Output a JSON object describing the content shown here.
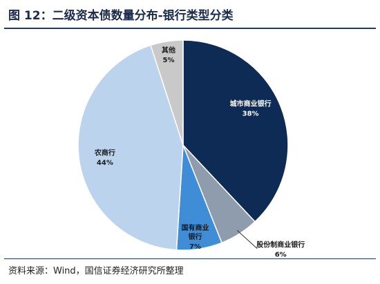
{
  "title": "图 12：二级资本债数量分布-银行类型分类",
  "source": "资料来源：Wind，国信证券经济研究所整理",
  "chart_data": {
    "type": "pie",
    "title": "图 12：二级资本债数量分布-银行类型分类",
    "slices": [
      {
        "name": "城市商业银行",
        "value": 38,
        "label": "38%",
        "color": "#0d2b55",
        "text_color": "#ffffff"
      },
      {
        "name": "股份制商业银行",
        "value": 6,
        "label": "6%",
        "color": "#8e9cad",
        "text_color": "#1a1a1a"
      },
      {
        "name": "国有商业银行",
        "value": 7,
        "label": "7%",
        "color": "#3f8dd6",
        "text_color": "#1a1a1a"
      },
      {
        "name": "农商行",
        "value": 44,
        "label": "44%",
        "color": "#bcd3ee",
        "text_color": "#1a1a1a"
      },
      {
        "name": "其他",
        "value": 5,
        "label": "5%",
        "color": "#c9c9c9",
        "text_color": "#1a1a1a"
      }
    ],
    "start_angle": "12 o'clock",
    "direction": "clockwise",
    "legend": "none"
  }
}
